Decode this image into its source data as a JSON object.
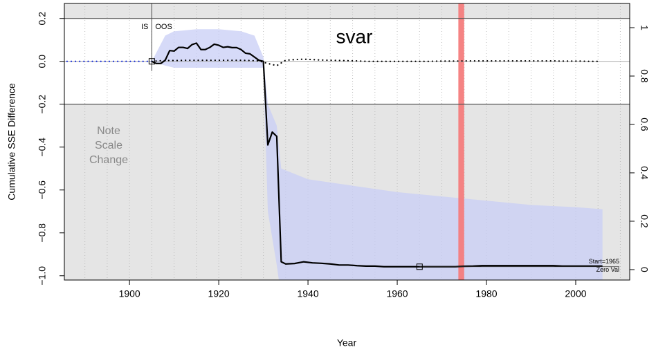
{
  "chart_data": {
    "type": "line",
    "title": "svar",
    "xlabel": "Year",
    "ylabel": "Cumulative SSE Difference",
    "xlim": [
      1885.4,
      2012.1
    ],
    "ylim": [
      -1.02,
      0.27
    ],
    "y2lim": [
      -0.043,
      1.1
    ],
    "xticks": [
      1900,
      1920,
      1940,
      1960,
      1980,
      2000
    ],
    "minor_xticks": [
      1890,
      1895,
      1900,
      1905,
      1910,
      1915,
      1920,
      1925,
      1930,
      1935,
      1940,
      1945,
      1950,
      1955,
      1960,
      1965,
      1970,
      1975,
      1980,
      1985,
      1990,
      1995,
      2000,
      2005,
      2010
    ],
    "yticks": [
      {
        "value": 0.2,
        "label": "0.2"
      },
      {
        "value": 0,
        "label": "0.0"
      },
      {
        "value": -0.2,
        "label": "−0.2"
      },
      {
        "value": -0.4,
        "label": "−0.4"
      },
      {
        "value": -0.6,
        "label": "−0.6"
      },
      {
        "value": -0.8,
        "label": "−0.8"
      },
      {
        "value": -1,
        "label": "−1.0"
      }
    ],
    "y2ticks": [
      0,
      0.2,
      0.4,
      0.6,
      0.8,
      1
    ],
    "scale_change_at": [
      -0.2,
      0.2
    ],
    "scale_note": [
      "Note",
      "Scale",
      "Change"
    ],
    "split_year": 1905,
    "split_labels": [
      "IS",
      "OOS"
    ],
    "highlight": {
      "x": [
        1973.7,
        1975.0
      ],
      "color": "#f47c7c"
    },
    "zero_marker": {
      "x": 1965,
      "y": -0.958,
      "labels": [
        "Start=1965",
        "Zero Val"
      ]
    },
    "band": {
      "color": "#c8cdf5",
      "x": [
        1905,
        1908,
        1910,
        1915,
        1920,
        1925,
        1928,
        1930,
        1931,
        1933,
        1934,
        1940,
        1950,
        1960,
        1970,
        1980,
        1990,
        2000,
        2006
      ],
      "upper": [
        0.0,
        0.12,
        0.14,
        0.15,
        0.15,
        0.14,
        0.12,
        0.02,
        -0.2,
        -0.3,
        -0.5,
        -0.55,
        -0.58,
        -0.61,
        -0.63,
        -0.65,
        -0.67,
        -0.68,
        -0.69
      ],
      "lower": [
        0.0,
        -0.02,
        -0.03,
        -0.03,
        -0.03,
        -0.03,
        -0.03,
        -0.03,
        -0.7,
        -0.95,
        -1.1,
        -1.1,
        -1.1,
        -1.1,
        -1.1,
        -1.1,
        -1.1,
        -1.1,
        -1.1
      ]
    },
    "series": [
      {
        "color": "#1a2fd6",
        "style": "dotted",
        "x": [
          1886,
          1887,
          1888,
          1889,
          1890,
          1891,
          1892,
          1893,
          1894,
          1895,
          1896,
          1897,
          1898,
          1899,
          1900,
          1901,
          1902,
          1903,
          1904,
          1905
        ],
        "values": [
          0,
          0,
          0,
          0,
          0,
          0,
          0,
          0,
          0,
          0,
          0,
          0,
          0,
          0,
          0,
          0,
          0,
          0,
          0,
          0
        ]
      },
      {
        "color": "#000000",
        "style": "dotted",
        "x": [
          1905,
          1907,
          1909,
          1911,
          1913,
          1915,
          1917,
          1919,
          1921,
          1923,
          1925,
          1927,
          1929,
          1931,
          1933,
          1935,
          1937,
          1939,
          1941,
          1943,
          1945,
          1947,
          1949,
          1951,
          1953,
          1955,
          1957,
          1959,
          1961,
          1963,
          1965,
          1967,
          1969,
          1971,
          1973,
          1975,
          1977,
          1979,
          1981,
          1983,
          1985,
          1987,
          1989,
          1991,
          1993,
          1995,
          1997,
          1999,
          2001,
          2003,
          2005
        ],
        "values": [
          0.0,
          0.003,
          0.004,
          0.004,
          0.005,
          0.005,
          0.005,
          0.005,
          0.005,
          0.005,
          0.005,
          0.004,
          0.002,
          -0.01,
          -0.02,
          0.005,
          0.008,
          0.01,
          0.008,
          0.006,
          0.005,
          0.004,
          0.003,
          0.002,
          0.0,
          0.0,
          0.0,
          0.0,
          0.0,
          0.0,
          0.0,
          0.0,
          0.001,
          0.001,
          0.001,
          0.002,
          0.002,
          0.002,
          0.002,
          0.002,
          0.002,
          0.002,
          0.002,
          0.002,
          0.002,
          0.002,
          0.001,
          0.001,
          0.001,
          0.0,
          0.0
        ]
      },
      {
        "color": "#000000",
        "style": "solid",
        "x": [
          1905,
          1906,
          1907,
          1908,
          1909,
          1910,
          1911,
          1912,
          1913,
          1914,
          1915,
          1916,
          1917,
          1918,
          1919,
          1920,
          1921,
          1922,
          1923,
          1924,
          1925,
          1926,
          1927,
          1928,
          1929,
          1930,
          1931,
          1932,
          1933,
          1934,
          1935,
          1937,
          1939,
          1941,
          1943,
          1945,
          1947,
          1949,
          1951,
          1953,
          1955,
          1957,
          1959,
          1961,
          1963,
          1965,
          1967,
          1969,
          1971,
          1973,
          1975,
          1977,
          1979,
          1981,
          1983,
          1985,
          1987,
          1989,
          1991,
          1993,
          1995,
          1997,
          1999,
          2001,
          2003,
          2006
        ],
        "values": [
          0,
          -0.01,
          -0.01,
          0.005,
          0.05,
          0.048,
          0.065,
          0.065,
          0.06,
          0.078,
          0.085,
          0.055,
          0.055,
          0.065,
          0.08,
          0.075,
          0.065,
          0.068,
          0.064,
          0.064,
          0.055,
          0.038,
          0.035,
          0.02,
          0.005,
          0.0,
          -0.39,
          -0.33,
          -0.35,
          -0.935,
          -0.945,
          -0.943,
          -0.935,
          -0.94,
          -0.942,
          -0.945,
          -0.95,
          -0.95,
          -0.953,
          -0.955,
          -0.955,
          -0.958,
          -0.958,
          -0.958,
          -0.958,
          -0.958,
          -0.958,
          -0.958,
          -0.958,
          -0.958,
          -0.956,
          -0.955,
          -0.953,
          -0.953,
          -0.953,
          -0.953,
          -0.953,
          -0.953,
          -0.953,
          -0.953,
          -0.953,
          -0.955,
          -0.955,
          -0.955,
          -0.955,
          -0.955
        ]
      }
    ]
  }
}
